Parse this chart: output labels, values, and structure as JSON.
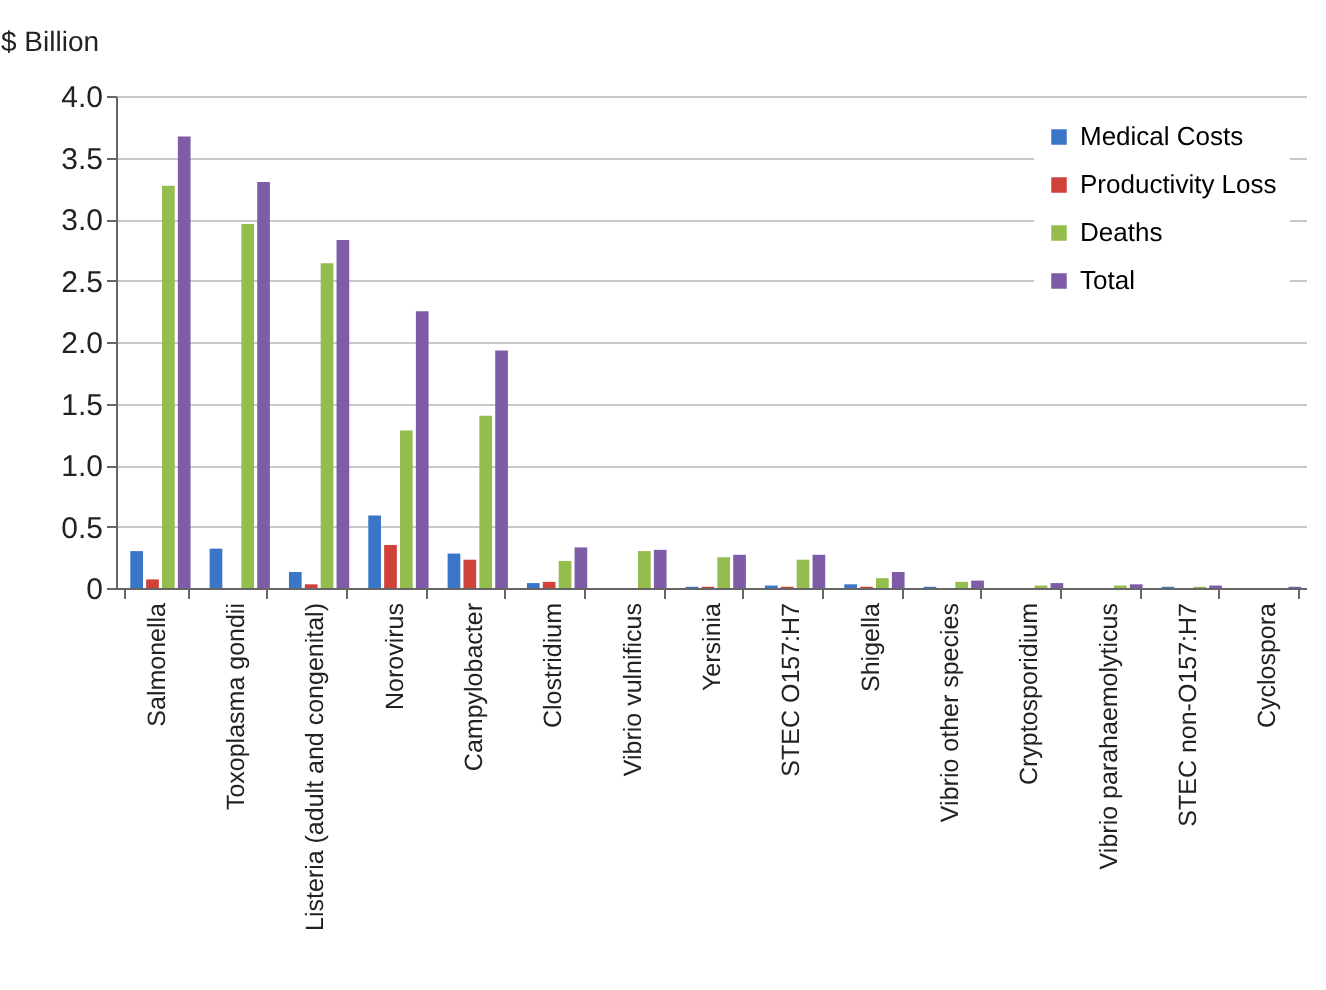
{
  "chart_data": {
    "type": "bar",
    "ylabel": "$ Billion",
    "categories": [
      "Salmonella",
      "Toxoplasma gondii",
      "Listeria (adult and congenital)",
      "Norovirus",
      "Campylobacter",
      "Clostridium",
      "Vibrio vulnificus",
      "Yersinia",
      "STEC O157:H7",
      "Shigella",
      "Vibrio other species",
      "Cryptosporidium",
      "Vibrio parahaemolyticus",
      "STEC non-O157:H7",
      "Cyclospora"
    ],
    "series": [
      {
        "name": "Medical Costs",
        "color": "#3a76c8",
        "values": [
          0.3,
          0.32,
          0.13,
          0.59,
          0.28,
          0.04,
          0,
          0.01,
          0.02,
          0.03,
          0.01,
          0,
          0,
          0.01,
          0
        ]
      },
      {
        "name": "Productivity Loss",
        "color": "#d0413a",
        "values": [
          0.07,
          0,
          0.03,
          0.35,
          0.23,
          0.05,
          0,
          0.01,
          0.01,
          0.01,
          0,
          0,
          0,
          0,
          0
        ]
      },
      {
        "name": "Deaths",
        "color": "#94bd4d",
        "values": [
          3.27,
          2.96,
          2.64,
          1.28,
          1.4,
          0.22,
          0.3,
          0.25,
          0.23,
          0.08,
          0.05,
          0.02,
          0.02,
          0.01,
          0
        ]
      },
      {
        "name": "Total",
        "color": "#7f5ca8",
        "values": [
          3.67,
          3.3,
          2.83,
          2.25,
          1.93,
          0.33,
          0.31,
          0.27,
          0.27,
          0.13,
          0.06,
          0.04,
          0.03,
          0.02,
          0.01
        ]
      }
    ],
    "ylim": [
      0,
      4
    ],
    "yticks": [
      {
        "value": 0,
        "label": "0"
      },
      0.5,
      {
        "value": 1,
        "label": "1.0"
      },
      1.5,
      {
        "value": 2,
        "label": "2.0"
      },
      2.5,
      {
        "value": 3,
        "label": "3.0"
      },
      3.5,
      {
        "value": 4,
        "label": "4.0"
      }
    ],
    "grid": "y",
    "legend": "top right"
  }
}
